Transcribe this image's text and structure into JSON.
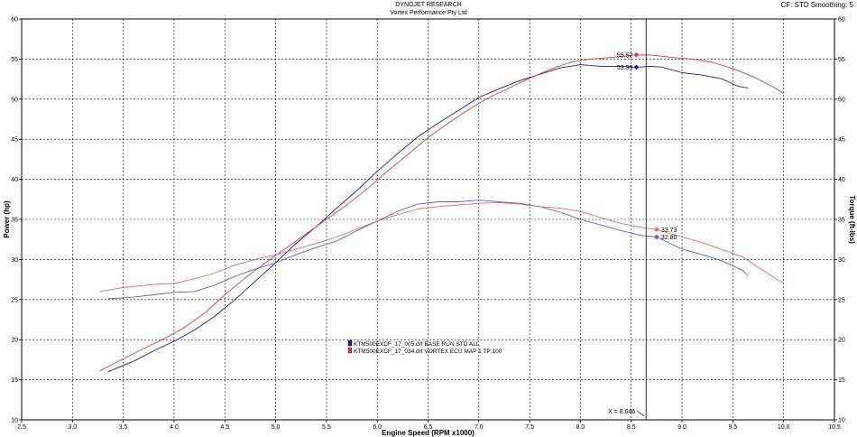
{
  "header": {
    "title": "DYNOJET RESEARCH",
    "subtitle": "Vortex Performance Pty Ltd",
    "settings": "CF: STD  Smoothing: 5"
  },
  "chart_data": {
    "type": "line",
    "xlabel": "Engine Speed (RPM x1000)",
    "ylabel_left": "Power (hp)",
    "ylabel_right": "Torque (ft-lbs)",
    "xlim": [
      2.5,
      10.5
    ],
    "ylim": [
      10,
      60
    ],
    "x_ticks": [
      "2.5",
      "3.0",
      "3.5",
      "4.0",
      "4.5",
      "5.0",
      "5.5",
      "6.0",
      "6.5",
      "7.0",
      "7.5",
      "8.0",
      "8.5",
      "9.0",
      "9.5",
      "10.0",
      "10.5"
    ],
    "y_ticks": [
      "10",
      "15",
      "20",
      "25",
      "30",
      "35",
      "40",
      "45",
      "50",
      "55",
      "60"
    ],
    "grid": true,
    "legend": {
      "placement": "center-left",
      "entries": [
        {
          "label": "KTM500EXCF_17_005.drf BASE RUN STD ALL",
          "color": "#1a1aa0"
        },
        {
          "label": "KTM500EXCF_17_034.drf  VORTEX ECU MAP 1 TP:100",
          "color": "#e03a3a"
        }
      ]
    },
    "series": [
      {
        "name": "KTM500EXCF_17_005.drf BASE RUN STD ALL",
        "quantity": "Power (hp)",
        "color": "#1a1aa0",
        "x": [
          3.35,
          3.6,
          3.8,
          4.0,
          4.2,
          4.4,
          4.6,
          4.8,
          5.0,
          5.2,
          5.4,
          5.6,
          5.8,
          6.0,
          6.2,
          6.4,
          6.6,
          6.8,
          7.0,
          7.2,
          7.4,
          7.6,
          7.8,
          8.0,
          8.2,
          8.4,
          8.55,
          8.7,
          8.8,
          9.0,
          9.2,
          9.4,
          9.55,
          9.65
        ],
        "y": [
          16.0,
          17.3,
          18.6,
          19.8,
          21.2,
          22.9,
          25.0,
          27.3,
          29.6,
          32.0,
          34.1,
          36.4,
          38.6,
          41.0,
          43.2,
          45.3,
          47.0,
          48.6,
          50.2,
          51.3,
          52.3,
          53.1,
          53.9,
          54.3,
          54.1,
          54.1,
          53.99,
          54.1,
          54.0,
          53.3,
          53.0,
          52.5,
          51.6,
          51.4
        ]
      },
      {
        "name": "KTM500EXCF_17_034.drf  VORTEX ECU MAP 1 TP:100",
        "quantity": "Power (hp)",
        "color": "#e03a3a",
        "x": [
          3.27,
          3.5,
          3.7,
          3.9,
          4.1,
          4.3,
          4.5,
          4.7,
          4.9,
          5.1,
          5.3,
          5.5,
          5.7,
          5.9,
          6.1,
          6.3,
          6.5,
          6.7,
          6.9,
          7.1,
          7.3,
          7.5,
          7.7,
          7.9,
          8.1,
          8.3,
          8.55,
          8.7,
          8.9,
          9.1,
          9.3,
          9.5,
          9.7,
          9.9,
          10.0
        ],
        "y": [
          16.1,
          17.6,
          18.9,
          20.1,
          21.5,
          23.3,
          25.6,
          27.7,
          29.6,
          31.4,
          33.2,
          35.0,
          36.8,
          38.8,
          41.0,
          43.1,
          45.2,
          47.0,
          48.7,
          50.2,
          51.4,
          52.6,
          53.7,
          54.6,
          55.0,
          55.2,
          55.52,
          55.5,
          55.2,
          55.0,
          54.6,
          53.8,
          52.8,
          51.5,
          50.7
        ]
      },
      {
        "name": "KTM500EXCF_17_005.drf BASE RUN STD ALL",
        "quantity": "Torque (ft-lbs)",
        "color": "#5b5bcc",
        "x": [
          3.35,
          3.6,
          3.8,
          4.0,
          4.2,
          4.4,
          4.6,
          4.8,
          5.0,
          5.2,
          5.4,
          5.6,
          5.8,
          6.0,
          6.2,
          6.4,
          6.6,
          6.8,
          7.0,
          7.2,
          7.4,
          7.6,
          7.8,
          8.0,
          8.2,
          8.4,
          8.6,
          8.75,
          9.0,
          9.2,
          9.4,
          9.6,
          9.65
        ],
        "y": [
          25.1,
          25.3,
          25.6,
          25.9,
          26.0,
          26.8,
          27.9,
          28.8,
          29.6,
          30.6,
          31.5,
          32.3,
          33.6,
          34.8,
          36.0,
          36.9,
          37.2,
          37.2,
          37.4,
          37.2,
          37.0,
          36.6,
          35.9,
          35.0,
          34.3,
          33.6,
          33.0,
          32.8,
          31.3,
          30.6,
          29.8,
          28.6,
          28.0
        ]
      },
      {
        "name": "KTM500EXCF_17_034.drf  VORTEX ECU MAP 1 TP:100",
        "quantity": "Torque (ft-lbs)",
        "color": "#e06a6a",
        "x": [
          3.27,
          3.5,
          3.8,
          4.0,
          4.2,
          4.4,
          4.6,
          4.8,
          5.0,
          5.2,
          5.4,
          5.6,
          5.8,
          6.0,
          6.2,
          6.4,
          6.6,
          6.8,
          7.0,
          7.2,
          7.4,
          7.6,
          7.8,
          8.0,
          8.2,
          8.4,
          8.6,
          8.75,
          9.0,
          9.2,
          9.4,
          9.6,
          9.8,
          10.0
        ],
        "y": [
          26.0,
          26.5,
          26.9,
          27.0,
          27.6,
          28.3,
          29.3,
          30.0,
          30.6,
          31.3,
          32.0,
          32.8,
          33.8,
          34.8,
          35.6,
          36.3,
          36.6,
          36.8,
          37.0,
          37.1,
          36.9,
          36.6,
          36.4,
          36.0,
          35.2,
          34.5,
          34.0,
          33.73,
          32.8,
          32.1,
          31.2,
          30.3,
          28.6,
          27.0
        ]
      }
    ],
    "annotations": [
      {
        "text": "55.52",
        "x": 8.55,
        "y": 55.52,
        "color": "#e03a3a"
      },
      {
        "text": "53.99",
        "x": 8.55,
        "y": 53.99,
        "color": "#1a1aa0"
      },
      {
        "text": "33.73",
        "x": 8.75,
        "y": 33.73,
        "color": "#e06a6a"
      },
      {
        "text": "32.80",
        "x": 8.75,
        "y": 32.8,
        "color": "#5b5bcc"
      }
    ],
    "cursor": {
      "label": "X = 8.646",
      "x": 8.646
    }
  }
}
